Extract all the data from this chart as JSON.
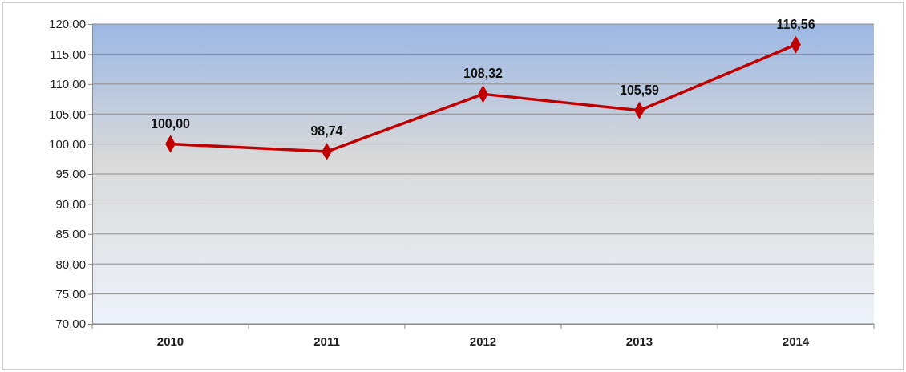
{
  "chart_data": {
    "type": "line",
    "categories": [
      "2010",
      "2011",
      "2012",
      "2013",
      "2014"
    ],
    "series": [
      {
        "color": "#c00000",
        "values": [
          100.0,
          98.74,
          108.32,
          105.59,
          116.56
        ],
        "value_labels": [
          "100,00",
          "98,74",
          "108,32",
          "105,59",
          "116,56"
        ]
      }
    ],
    "ylim": [
      70,
      120
    ],
    "yticks": [
      {
        "value": 70,
        "label": "70,00"
      },
      {
        "value": 75,
        "label": "75,00"
      },
      {
        "value": 80,
        "label": "80,00"
      },
      {
        "value": 85,
        "label": "85,00"
      },
      {
        "value": 90,
        "label": "90,00"
      },
      {
        "value": 95,
        "label": "95,00"
      },
      {
        "value": 100,
        "label": "100,00"
      },
      {
        "value": 105,
        "label": "105,00"
      },
      {
        "value": 110,
        "label": "110,00"
      },
      {
        "value": 115,
        "label": "115,00"
      },
      {
        "value": 120,
        "label": "120,00"
      }
    ],
    "grid": "y",
    "marker": "diamond",
    "line_style": "solid"
  }
}
